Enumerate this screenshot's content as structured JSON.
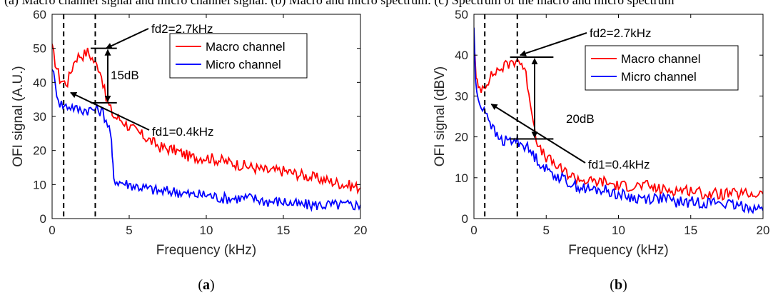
{
  "top_caption_fragment": "(a) Macro channel signal and micro channel signal. (b) Macro and micro spectrum. (c) Spectrum of the macro and micro spectrum",
  "chart_data": [
    {
      "type": "line",
      "panel": "(a)",
      "caption_main": "a",
      "xlabel": "Frequency (kHz)",
      "ylabel": "OFI signal (A.U.)",
      "xlim": [
        0,
        20
      ],
      "ylim": [
        0,
        60
      ],
      "xticks": [
        0,
        5,
        10,
        15,
        20
      ],
      "yticks": [
        0,
        10,
        20,
        30,
        40,
        50,
        60
      ],
      "legend_position": "top-right",
      "vlines": [
        0.75,
        2.8
      ],
      "series": [
        {
          "name": "Macro channel",
          "color": "#ff0000",
          "x": [
            0,
            0.2,
            0.5,
            0.8,
            1.0,
            1.2,
            1.5,
            1.8,
            2.0,
            2.3,
            2.6,
            2.9,
            3.1,
            3.3,
            3.5,
            3.7,
            4.0,
            4.5,
            5,
            6,
            7,
            8,
            9,
            10,
            11,
            12,
            13,
            14,
            15,
            16,
            17,
            18,
            19,
            20
          ],
          "y": [
            50,
            46,
            41,
            40,
            40,
            43,
            47,
            48,
            48,
            49,
            47,
            45,
            44,
            40,
            35,
            33,
            30,
            29,
            27,
            24,
            21,
            20,
            18,
            18,
            17,
            16,
            15,
            14,
            14,
            13,
            12,
            11,
            10,
            9
          ]
        },
        {
          "name": "Micro channel",
          "color": "#0000ff",
          "x": [
            0,
            0.2,
            0.5,
            0.8,
            1.0,
            1.3,
            1.6,
            2.0,
            2.5,
            3.0,
            3.3,
            3.6,
            3.8,
            3.9,
            4.0,
            4.2,
            5,
            6,
            7,
            8,
            9,
            10,
            11,
            12,
            13,
            14,
            15,
            16,
            17,
            18,
            19,
            20
          ],
          "y": [
            45,
            39,
            34,
            33,
            33,
            33,
            32,
            32,
            32,
            32,
            31,
            28,
            25,
            18,
            12,
            11,
            10,
            9,
            8,
            8,
            7,
            7,
            6,
            6,
            6,
            5,
            5,
            4,
            4,
            4,
            4,
            4
          ]
        }
      ],
      "annotations": [
        {
          "text": "fd2=2.7kHz",
          "at": [
            3.5,
            50
          ],
          "tail": [
            9,
            57
          ]
        },
        {
          "text": "15dB"
        },
        {
          "text": "fd1=0.4kHz",
          "at": [
            1.2,
            37
          ],
          "tail": [
            7,
            26
          ]
        }
      ],
      "hlines": [
        {
          "y": 50,
          "x": [
            2.5,
            4.2
          ]
        },
        {
          "y": 34,
          "x": [
            2.5,
            4.2
          ]
        }
      ]
    },
    {
      "type": "line",
      "panel": "(b)",
      "caption_main": "b",
      "xlabel": "Frequency (kHz)",
      "ylabel": "OFI signal (dBV)",
      "xlim": [
        0,
        20
      ],
      "ylim": [
        0,
        50
      ],
      "xticks": [
        0,
        5,
        10,
        15,
        20
      ],
      "yticks": [
        0,
        10,
        20,
        30,
        40,
        50
      ],
      "legend_position": "top-right",
      "vlines": [
        0.75,
        3.0
      ],
      "series": [
        {
          "name": "Macro channel",
          "color": "#ff0000",
          "x": [
            0,
            0.15,
            0.3,
            0.5,
            0.8,
            1.0,
            1.5,
            2.0,
            2.5,
            3.0,
            3.3,
            3.6,
            3.9,
            4.2,
            4.5,
            5,
            6,
            7,
            8,
            9,
            10,
            11,
            12,
            13,
            14,
            15,
            16,
            17,
            18,
            19,
            20
          ],
          "y": [
            44,
            34,
            32,
            32,
            33,
            34,
            36,
            37,
            38,
            39,
            38,
            35,
            29,
            22,
            17,
            15,
            12,
            10,
            9,
            9,
            8,
            8,
            8,
            7,
            7,
            7,
            6,
            6,
            6,
            6,
            6
          ]
        },
        {
          "name": "Micro channel",
          "color": "#0000ff",
          "x": [
            0,
            0.1,
            0.2,
            0.4,
            0.7,
            1.0,
            1.3,
            1.6,
            2.0,
            2.5,
            3.0,
            3.5,
            4.0,
            4.5,
            5,
            6,
            7,
            8,
            9,
            10,
            11,
            12,
            13,
            14,
            15,
            16,
            17,
            18,
            19,
            20
          ],
          "y": [
            47,
            35,
            30,
            28,
            27,
            25,
            22,
            20,
            19,
            19,
            19,
            18,
            16,
            14,
            12,
            10,
            8,
            7,
            7,
            6,
            5,
            5,
            5,
            4,
            4,
            4,
            4,
            3,
            3,
            2
          ]
        }
      ],
      "annotations": [
        {
          "text": "fd2=2.7kHz",
          "at": [
            3.2,
            40
          ],
          "tail": [
            8,
            47
          ]
        },
        {
          "text": "20dB"
        },
        {
          "text": "fd1=0.4kHz",
          "at": [
            1.2,
            28
          ],
          "tail": [
            8,
            15
          ]
        }
      ],
      "hlines": [
        {
          "y": 39.5,
          "x": [
            2.5,
            5.5
          ]
        },
        {
          "y": 19.5,
          "x": [
            2.5,
            5.5
          ]
        }
      ]
    }
  ]
}
